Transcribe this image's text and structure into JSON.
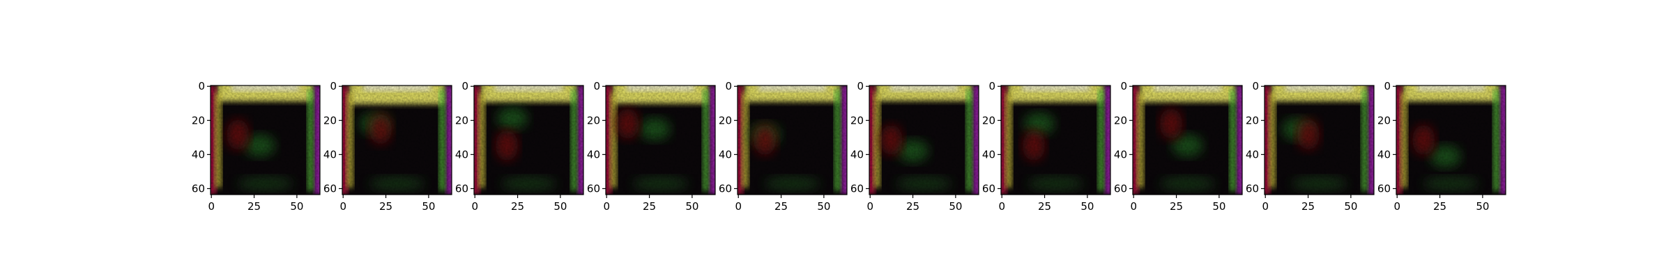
{
  "figure": {
    "panel_count": 10,
    "x_tick_labels": [
      "0",
      "25",
      "50"
    ],
    "y_tick_labels": [
      "0",
      "20",
      "40",
      "60"
    ],
    "x_ticks": [
      0,
      25,
      50
    ],
    "y_ticks": [
      0,
      20,
      40,
      60
    ],
    "image_extent": [
      64,
      64
    ],
    "colors": {
      "background": "#ffffff",
      "axes_edge": "#000000",
      "dark_center": "#0b070a",
      "yellow_top": "#f4f06a",
      "red_left": "#b01040",
      "magenta_right": "#a020b0",
      "green_patch": "#1a5a1a"
    }
  }
}
